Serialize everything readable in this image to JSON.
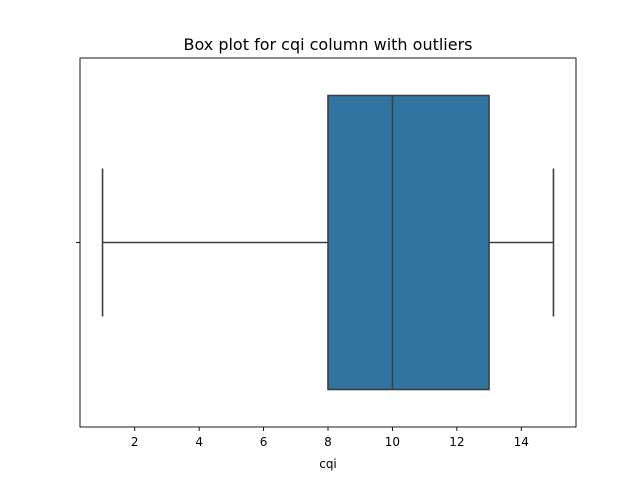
{
  "chart_data": {
    "type": "box",
    "title": "Box plot for cqi column with outliers",
    "xlabel": "cqi",
    "ylabel": "",
    "orientation": "horizontal",
    "xlim": [
      0.3,
      15.7
    ],
    "xticks": [
      2,
      4,
      6,
      8,
      10,
      12,
      14
    ],
    "xtick_labels": [
      "2",
      "4",
      "6",
      "8",
      "10",
      "12",
      "14"
    ],
    "box": {
      "min": 1,
      "q1": 8,
      "median": 10,
      "q3": 13,
      "max": 15
    },
    "grid": false,
    "legend": "none",
    "colors": {
      "box_fill": "#3274a1",
      "line": "#3f3f3f",
      "spine": "#000000"
    }
  }
}
